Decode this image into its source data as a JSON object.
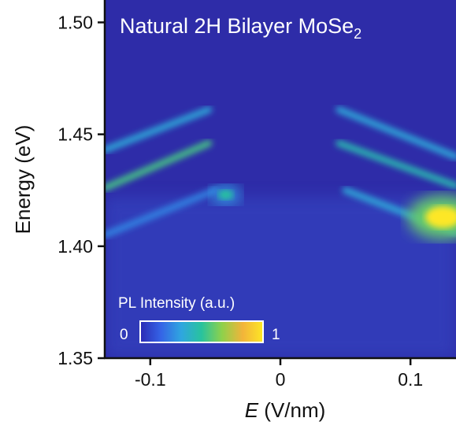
{
  "chart_data": {
    "type": "heatmap",
    "title": "Natural 2H Bilayer MoSe",
    "title_subscript": "2",
    "xlabel_symbol": "E",
    "xlabel_unit": "(V/nm)",
    "ylabel": "Energy (eV)",
    "xlim": [
      -0.135,
      0.135
    ],
    "ylim": [
      1.35,
      1.51
    ],
    "x_ticks": [
      {
        "value": -0.1,
        "label": "-0.1"
      },
      {
        "value": 0,
        "label": "0"
      },
      {
        "value": 0.1,
        "label": "0.1"
      }
    ],
    "y_ticks": [
      {
        "value": 1.35,
        "label": "1.35"
      },
      {
        "value": 1.4,
        "label": "1.40"
      },
      {
        "value": 1.45,
        "label": "1.45"
      },
      {
        "value": 1.5,
        "label": "1.50"
      }
    ],
    "colorbar": {
      "label": "PL Intensity (a.u.)",
      "min_label": "0",
      "max_label": "1",
      "colormap": "plasma-like",
      "stops": [
        "#2b2ab4",
        "#3563e6",
        "#2fa6e0",
        "#28c39d",
        "#8fd14b",
        "#f2b43a",
        "#fde725"
      ]
    },
    "features": [
      {
        "name": "upper-branch-left",
        "x": [
          -0.135,
          -0.055
        ],
        "y": [
          1.443,
          1.461
        ],
        "intensity": 0.35
      },
      {
        "name": "upper-branch-right",
        "x": [
          0.045,
          0.135
        ],
        "y": [
          1.461,
          1.44
        ],
        "intensity": 0.35
      },
      {
        "name": "middle-branch-left",
        "x": [
          -0.135,
          -0.055
        ],
        "y": [
          1.426,
          1.446
        ],
        "intensity": 0.55
      },
      {
        "name": "middle-branch-right",
        "x": [
          0.045,
          0.135
        ],
        "y": [
          1.446,
          1.427
        ],
        "intensity": 0.45
      },
      {
        "name": "lower-branch-left",
        "x": [
          -0.135,
          -0.05
        ],
        "y": [
          1.405,
          1.425
        ],
        "intensity": 0.25
      },
      {
        "name": "lower-branch-right",
        "x": [
          0.05,
          0.135
        ],
        "y": [
          1.425,
          1.406
        ],
        "intensity": 0.35
      },
      {
        "name": "bright-spot-right",
        "x": 0.125,
        "y": 1.413,
        "intensity": 1.0
      },
      {
        "name": "spot-center-left",
        "x": -0.042,
        "y": 1.423,
        "intensity": 0.5
      }
    ]
  }
}
